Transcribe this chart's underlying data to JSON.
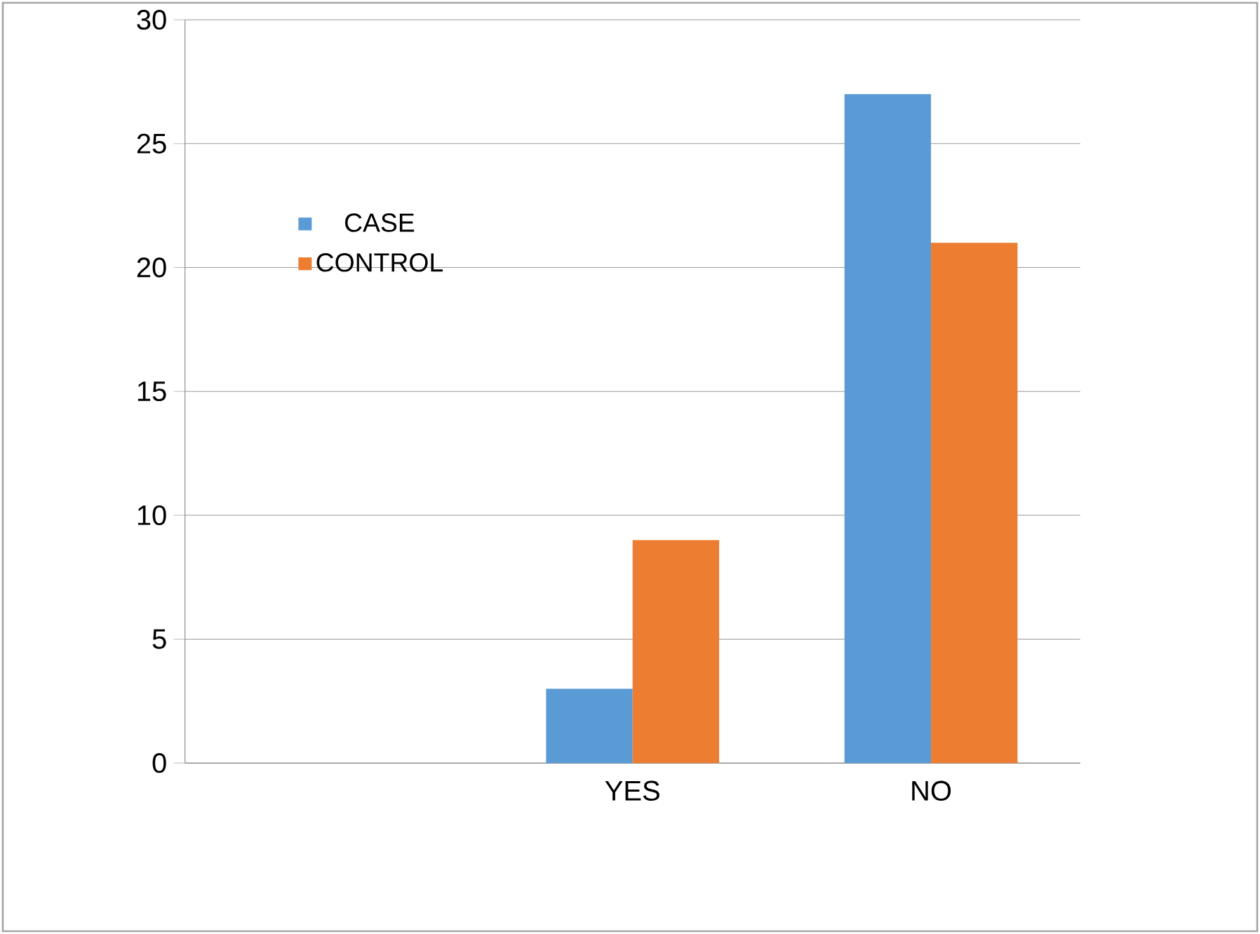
{
  "chart_data": {
    "type": "bar",
    "categories": [
      null,
      "YES",
      "NO"
    ],
    "series": [
      {
        "name": "CASE",
        "color": "#5b9bd5",
        "values": [
          null,
          3,
          27
        ]
      },
      {
        "name": "CONTROL",
        "color": "#ed7d31",
        "values": [
          null,
          9,
          21
        ]
      }
    ],
    "ylim": [
      0,
      30
    ],
    "yticks": [
      0,
      5,
      10,
      15,
      20,
      25,
      30
    ],
    "grid": "y",
    "legend": "top left"
  }
}
